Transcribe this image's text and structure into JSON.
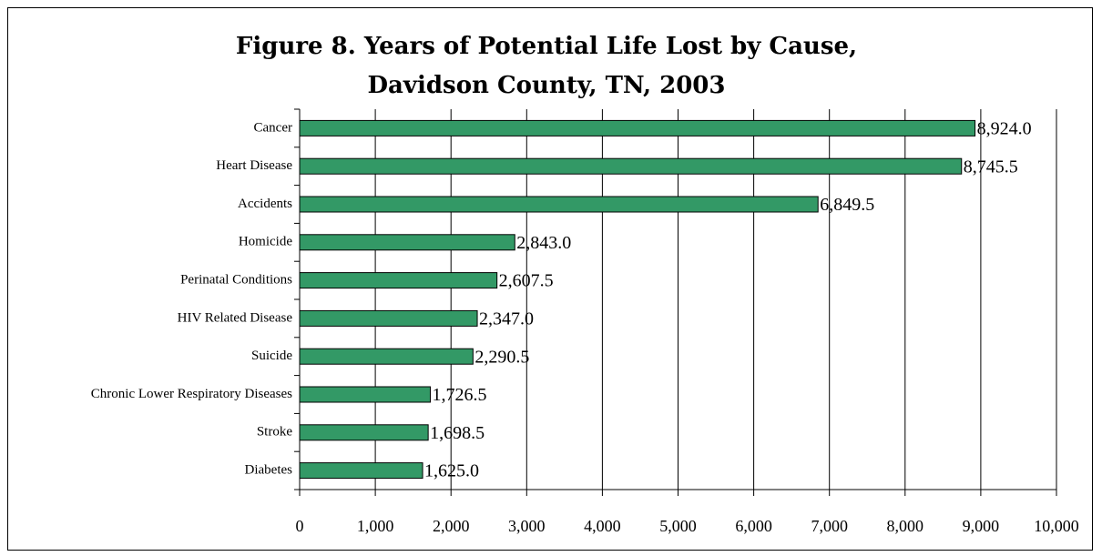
{
  "chart_data": {
    "type": "hbar",
    "title": [
      "Figure 8. Years of Potential Life Lost by Cause,",
      "Davidson County, TN, 2003"
    ],
    "categories": [
      "Cancer",
      "Heart Disease",
      "Accidents",
      "Homicide",
      "Perinatal Conditions",
      "HIV Related Disease",
      "Suicide",
      "Chronic Lower Respiratory Diseases",
      "Stroke",
      "Diabetes"
    ],
    "values": [
      8924.0,
      8745.5,
      6849.5,
      2843.0,
      2607.5,
      2347.0,
      2290.5,
      1726.5,
      1698.5,
      1625.0
    ],
    "value_labels": [
      "8,924.0",
      "8,745.5",
      "6,849.5",
      "2,843.0",
      "2,607.5",
      "2,347.0",
      "2,290.5",
      "1,726.5",
      "1,698.5",
      "1,625.0"
    ],
    "color": "#339966",
    "xlim": [
      0,
      10000
    ],
    "xticks": [
      0,
      {
        "value": 1000,
        "label": "1,000"
      },
      {
        "value": 2000,
        "label": "2,000"
      },
      {
        "value": 3000,
        "label": "3,000"
      },
      {
        "value": 4000,
        "label": "4,000"
      },
      {
        "value": 5000,
        "label": "5,000"
      },
      {
        "value": 6000,
        "label": "6,000"
      },
      {
        "value": 7000,
        "label": "7,000"
      },
      {
        "value": 8000,
        "label": "8,000"
      },
      {
        "value": 9000,
        "label": "9,000"
      },
      {
        "value": 10000,
        "label": "10,000"
      }
    ],
    "grid": true
  }
}
